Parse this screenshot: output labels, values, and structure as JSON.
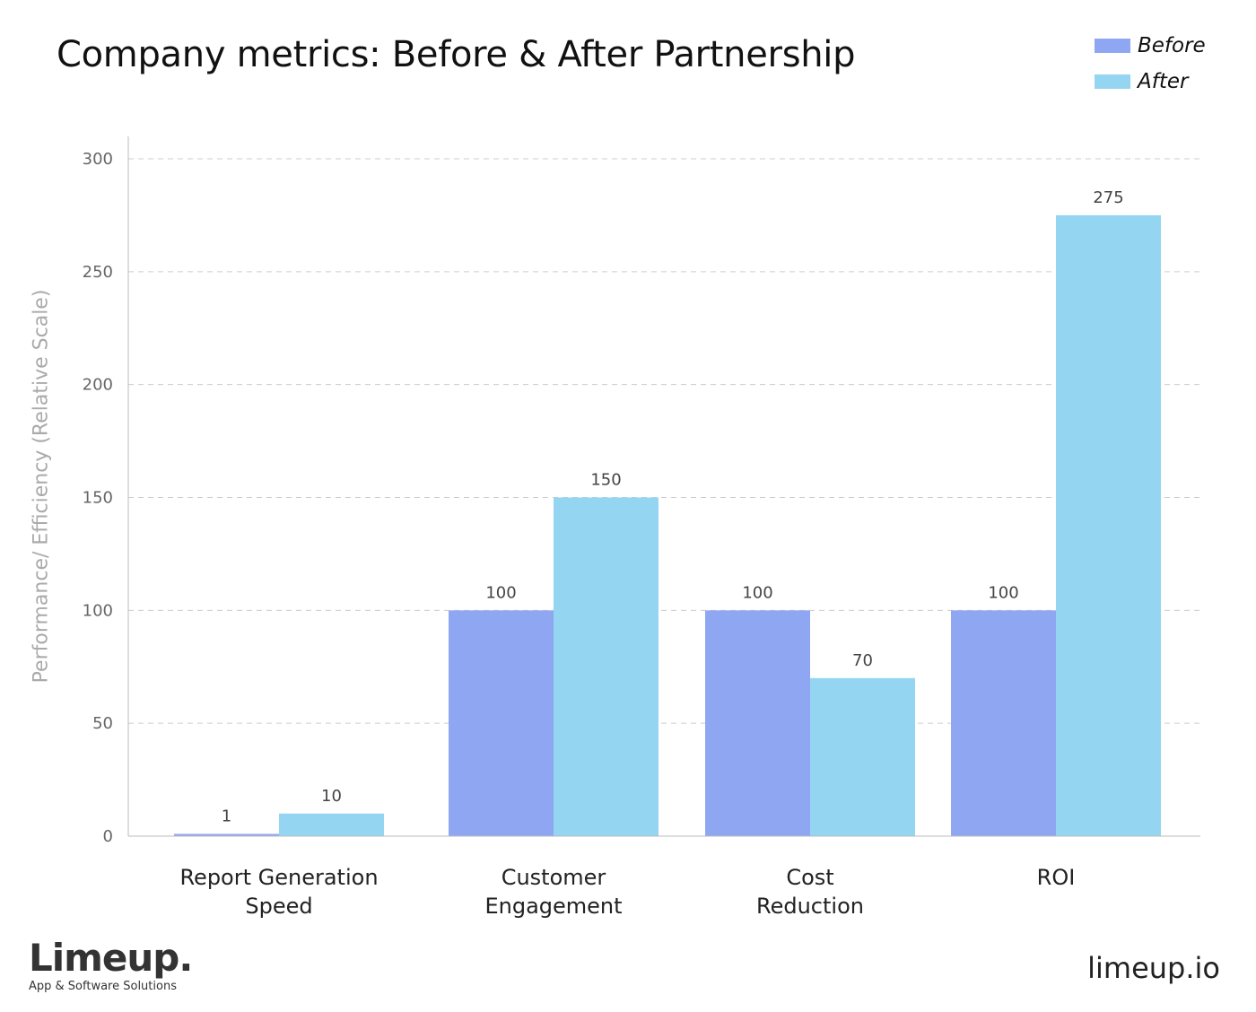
{
  "chart_data": {
    "type": "bar",
    "title": "Company metrics: Before & After Partnership",
    "ylabel": "Performance/ Efficiency (Relative Scale)",
    "xlabel": "",
    "ylim": [
      0,
      300
    ],
    "yticks": [
      0,
      50,
      100,
      150,
      200,
      250,
      300
    ],
    "grid": true,
    "legend_position": "top-right",
    "categories": [
      [
        "Report Generation",
        "Speed"
      ],
      [
        "Customer",
        "Engagement"
      ],
      [
        "Cost",
        "Reduction"
      ],
      [
        "ROI"
      ]
    ],
    "series": [
      {
        "name": "Before",
        "color": "#8fa6f2",
        "values": [
          1,
          100,
          100,
          100
        ]
      },
      {
        "name": "After",
        "color": "#94d5f2",
        "values": [
          10,
          150,
          70,
          275
        ]
      }
    ]
  },
  "branding": {
    "logo": "Limeup.",
    "tagline": "App & Software Solutions",
    "site": "limeup.io"
  }
}
